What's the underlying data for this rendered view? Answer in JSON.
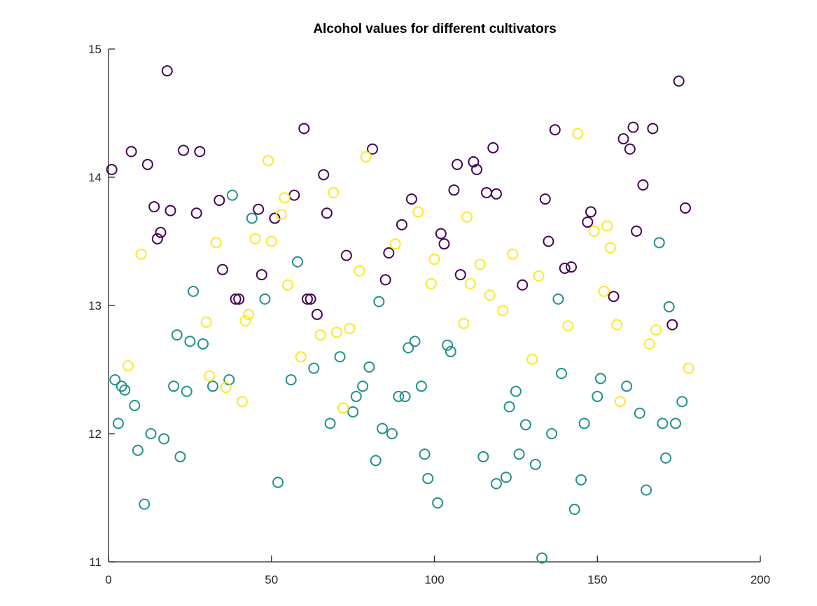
{
  "chart_data": {
    "type": "scatter",
    "title": "Alcohol values for different cultivators",
    "xlabel": "",
    "ylabel": "",
    "xlim": [
      0,
      200
    ],
    "ylim": [
      11,
      15
    ],
    "xticks": [
      0,
      50,
      100,
      150,
      200
    ],
    "yticks": [
      11,
      12,
      13,
      14,
      15
    ],
    "grid": false,
    "legend": "none",
    "marker": "circle-open",
    "colors": [
      "#440154",
      "#21908c",
      "#fde725"
    ],
    "series": [
      {
        "x": [
          1,
          7,
          12,
          14,
          15,
          16,
          18,
          19,
          23,
          27,
          28,
          34,
          35,
          39,
          40,
          46,
          47,
          51,
          57,
          60,
          61,
          62,
          64,
          66,
          67,
          73,
          81,
          85,
          86,
          90,
          93,
          102,
          103,
          106,
          107,
          108,
          112,
          113,
          116,
          118,
          119,
          127,
          134,
          135,
          137,
          140,
          142,
          147,
          148,
          155,
          158,
          160,
          161,
          162,
          164,
          167,
          173,
          175,
          177
        ],
        "y": [
          14.06,
          14.2,
          14.1,
          13.77,
          13.52,
          13.57,
          14.83,
          13.74,
          14.21,
          13.72,
          14.2,
          13.82,
          13.28,
          13.05,
          13.05,
          13.75,
          13.24,
          13.68,
          13.86,
          14.38,
          13.05,
          13.05,
          12.93,
          14.02,
          13.72,
          13.39,
          14.22,
          13.2,
          13.41,
          13.63,
          13.83,
          13.56,
          13.48,
          13.9,
          14.1,
          13.24,
          14.12,
          14.06,
          13.88,
          14.23,
          13.87,
          13.16,
          13.83,
          13.5,
          14.37,
          13.29,
          13.3,
          13.65,
          13.73,
          13.07,
          14.3,
          14.22,
          14.39,
          13.58,
          13.94,
          14.38,
          12.85,
          14.75,
          13.76
        ]
      },
      {
        "x": [
          2,
          3,
          4,
          5,
          8,
          9,
          11,
          13,
          17,
          20,
          21,
          22,
          24,
          25,
          26,
          29,
          32,
          37,
          38,
          44,
          48,
          52,
          56,
          58,
          63,
          68,
          71,
          75,
          76,
          78,
          80,
          82,
          83,
          84,
          87,
          89,
          91,
          92,
          94,
          96,
          97,
          98,
          101,
          104,
          105,
          115,
          119,
          122,
          123,
          125,
          126,
          128,
          131,
          133,
          136,
          138,
          139,
          143,
          145,
          146,
          150,
          151,
          159,
          163,
          165,
          169,
          170,
          171,
          172,
          174,
          176
        ],
        "y": [
          12.42,
          12.08,
          12.37,
          12.34,
          12.22,
          11.87,
          11.45,
          12.0,
          11.96,
          12.37,
          12.77,
          11.82,
          12.33,
          12.72,
          13.11,
          12.7,
          12.37,
          12.42,
          13.86,
          13.68,
          13.05,
          11.62,
          12.42,
          13.34,
          12.51,
          12.08,
          12.6,
          12.17,
          12.29,
          12.37,
          12.52,
          11.79,
          13.03,
          12.04,
          12.0,
          12.29,
          12.29,
          12.67,
          12.72,
          12.37,
          11.84,
          11.65,
          11.46,
          12.69,
          12.64,
          11.82,
          11.61,
          11.66,
          12.21,
          12.33,
          11.84,
          12.07,
          11.76,
          11.03,
          12.0,
          13.05,
          12.47,
          11.41,
          11.64,
          12.08,
          12.29,
          12.43,
          12.37,
          12.16,
          11.56,
          13.49,
          12.08,
          11.81,
          12.99,
          12.08,
          12.25
        ]
      },
      {
        "x": [
          6,
          10,
          30,
          31,
          33,
          36,
          41,
          42,
          43,
          45,
          49,
          50,
          53,
          54,
          55,
          59,
          65,
          69,
          70,
          72,
          74,
          77,
          79,
          88,
          95,
          99,
          100,
          109,
          110,
          111,
          114,
          117,
          121,
          124,
          130,
          132,
          141,
          144,
          149,
          152,
          153,
          154,
          156,
          157,
          166,
          168,
          178
        ],
        "y": [
          12.53,
          13.4,
          12.87,
          12.45,
          13.49,
          12.36,
          12.25,
          12.88,
          12.93,
          13.52,
          14.13,
          13.5,
          13.71,
          13.84,
          13.16,
          12.6,
          12.77,
          13.88,
          12.79,
          12.2,
          12.82,
          13.27,
          14.16,
          13.48,
          13.73,
          13.17,
          13.36,
          12.86,
          13.69,
          13.17,
          13.32,
          13.08,
          12.96,
          13.4,
          12.58,
          13.23,
          12.84,
          14.34,
          13.58,
          13.11,
          13.62,
          13.45,
          12.85,
          12.25,
          12.7,
          12.81,
          12.51
        ]
      }
    ]
  }
}
